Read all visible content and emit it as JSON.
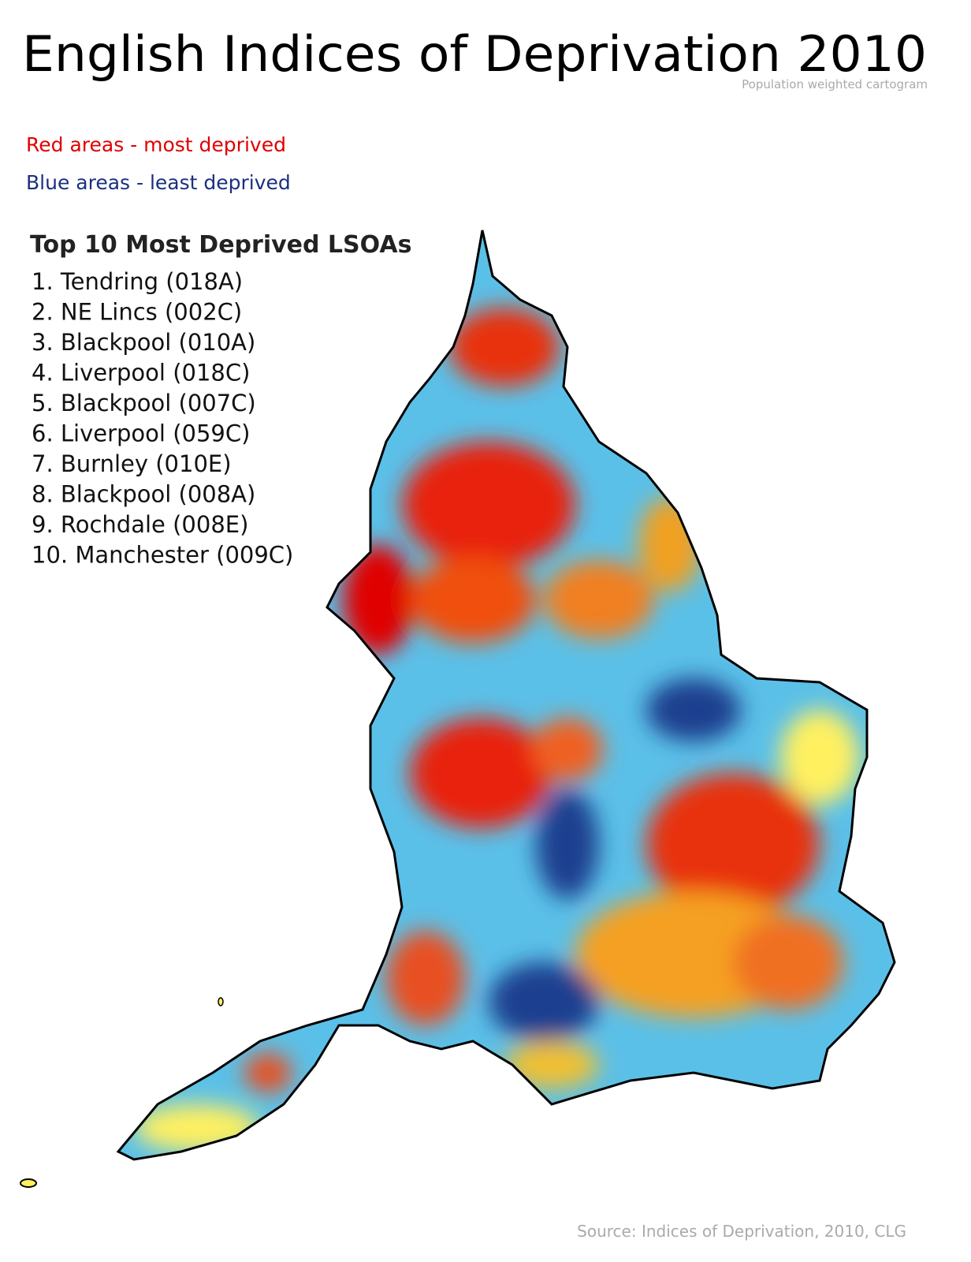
{
  "header": {
    "title": "English Indices of Deprivation 2010",
    "subtitle": "Population weighted cartogram"
  },
  "legend": {
    "red": "Red areas - most deprived",
    "blue": "Blue areas - least deprived"
  },
  "top_list": {
    "title": "Top 10 Most Deprived LSOAs",
    "items": [
      "1. Tendring (018A)",
      "2. NE Lincs (002C)",
      "3. Blackpool (010A)",
      "4. Liverpool (018C)",
      "5. Blackpool (007C)",
      "6. Liverpool (059C)",
      "7. Burnley (010E)",
      "8. Blackpool (008A)",
      "9. Rochdale (008E)",
      "10. Manchester (009C)"
    ]
  },
  "source": "Source: Indices of Deprivation, 2010, CLG"
}
